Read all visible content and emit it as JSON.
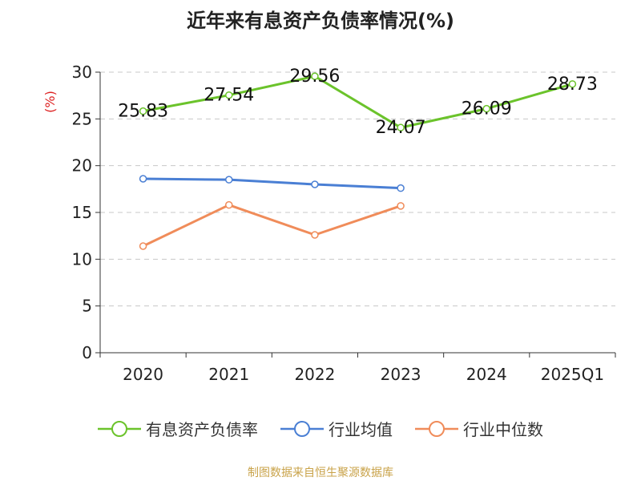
{
  "chart_data": {
    "type": "line",
    "title": "近年来有息资产负债率情况(%)",
    "ylabel": "(%)",
    "categories": [
      "2020",
      "2021",
      "2022",
      "2023",
      "2024",
      "2025Q1"
    ],
    "ylim": [
      0,
      30
    ],
    "yticks": [
      0,
      5,
      10,
      15,
      20,
      25,
      30
    ],
    "grid": true,
    "legend_position": "bottom",
    "series": [
      {
        "name": "有息资产负债率",
        "color": "#6bc32b",
        "values": [
          25.83,
          27.54,
          29.56,
          24.07,
          26.09,
          28.73
        ],
        "labels": [
          "25.83",
          "27.54",
          "29.56",
          "24.07",
          "26.09",
          "28.73"
        ]
      },
      {
        "name": "行业均值",
        "color": "#4a7fd4",
        "values": [
          18.6,
          18.5,
          18.0,
          17.6,
          null,
          null
        ]
      },
      {
        "name": "行业中位数",
        "color": "#f08c5a",
        "values": [
          11.4,
          15.8,
          12.6,
          15.7,
          null,
          null
        ]
      }
    ]
  },
  "source_note": "制图数据来自恒生聚源数据库"
}
